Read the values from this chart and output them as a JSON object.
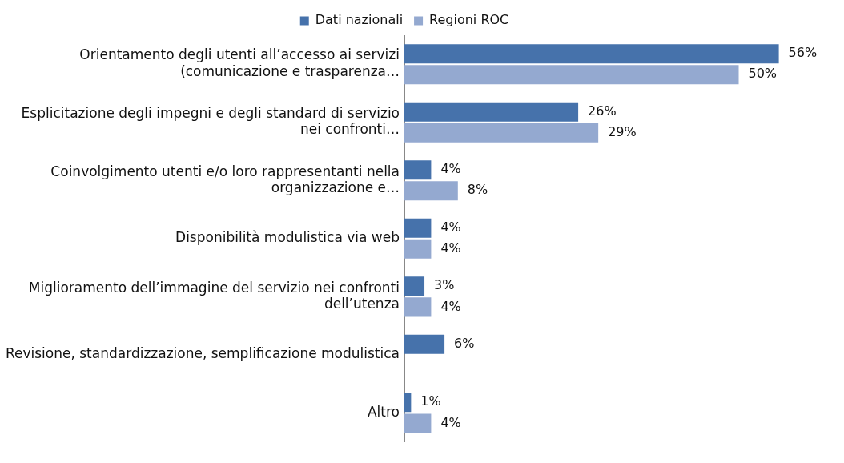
{
  "chart_data": {
    "type": "bar",
    "orientation": "horizontal",
    "legend": "top",
    "categories": [
      "Orientamento degli utenti all’accesso ai servizi (comunicazione e trasparenza…",
      "Esplicitazione degli impegni e degli standard di servizio nei confronti…",
      "Coinvolgimento utenti e/o loro rappresentanti nella organizzazione e…",
      "Disponibilità modulistica via web",
      "Miglioramento dell’immagine del servizio nei confronti dell’utenza",
      "Revisione, standardizzazione, semplificazione modulistica",
      "Altro"
    ],
    "series": [
      {
        "name": "Dati nazionali",
        "color": "#4672ab",
        "values": [
          56,
          26,
          4,
          4,
          3,
          6,
          1
        ],
        "value_labels": [
          "56%",
          "26%",
          "4%",
          "4%",
          "3%",
          "6%",
          "1%"
        ]
      },
      {
        "name": "Regioni ROC",
        "color": "#94a9d0",
        "values": [
          50,
          29,
          8,
          4,
          4,
          null,
          4
        ],
        "value_labels": [
          "50%",
          "29%",
          "8%",
          "4%",
          "4%",
          null,
          "4%"
        ]
      }
    ]
  }
}
